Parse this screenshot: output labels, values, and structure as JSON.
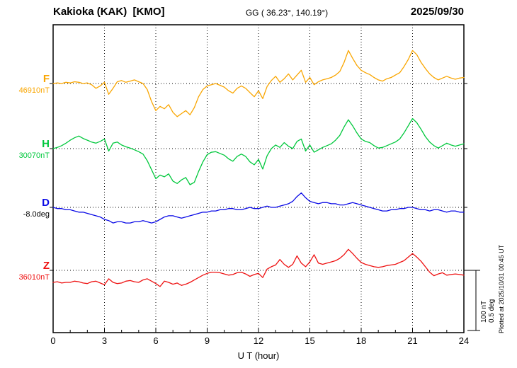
{
  "header": {
    "title": "Kakioka (KAK)  [KMO]",
    "coords": "GG ( 36.23°, 140.19°)",
    "date": "2025/09/30"
  },
  "axis": {
    "x_label": "U T (hour)",
    "x_ticks": [
      "0",
      "3",
      "6",
      "9",
      "12",
      "15",
      "18",
      "21",
      "24"
    ],
    "x_min": 0,
    "x_max": 24
  },
  "scale_bar": {
    "nt_label": "100 nT",
    "deg_label": "0.5 deg"
  },
  "footer_note": "Plotted at 2025/10/31 00:45 UT",
  "chart_data": {
    "type": "line",
    "title": "Kakioka (KAK) [KMO] geomagnetic field variations, 2025/09/30",
    "xlabel": "U T (hour)",
    "x_range_hours": [
      0,
      24
    ],
    "sample_interval_hours": 0.25,
    "grid": "dotted vertical lines every 3 h; dotted horizontal line at each trace baseline",
    "legend_position": "left margin",
    "scale": {
      "nT_per_bar": 100,
      "deg_per_bar": 0.5
    },
    "series": [
      {
        "name": "F",
        "unit": "nT",
        "color": "#f9a602",
        "label_color": "#f9a602",
        "baseline_label": "46910nT",
        "baseline_value": 46910,
        "offsets_from_baseline": [
          0,
          1,
          0,
          2,
          1,
          3,
          2,
          0,
          1,
          -2,
          -8,
          -4,
          2,
          -18,
          -8,
          3,
          5,
          2,
          4,
          6,
          3,
          0,
          -10,
          -30,
          -45,
          -38,
          -42,
          -35,
          -48,
          -55,
          -50,
          -45,
          -52,
          -40,
          -22,
          -10,
          -4,
          -2,
          0,
          -3,
          -6,
          -12,
          -16,
          -8,
          -4,
          -8,
          -15,
          -22,
          -12,
          -25,
          -5,
          5,
          12,
          2,
          8,
          16,
          6,
          14,
          22,
          2,
          10,
          -2,
          3,
          6,
          8,
          10,
          14,
          20,
          35,
          55,
          42,
          30,
          22,
          18,
          15,
          10,
          6,
          4,
          8,
          10,
          14,
          18,
          28,
          40,
          55,
          48,
          35,
          25,
          16,
          10,
          6,
          9,
          12,
          9,
          7,
          9,
          10
        ]
      },
      {
        "name": "H",
        "unit": "nT",
        "color": "#00c83c",
        "label_color": "#00c83c",
        "baseline_label": "30070nT",
        "baseline_value": 30070,
        "offsets_from_baseline": [
          0,
          2,
          5,
          9,
          14,
          18,
          21,
          17,
          14,
          11,
          9,
          12,
          16,
          -4,
          9,
          11,
          6,
          3,
          1,
          -2,
          -5,
          -9,
          -20,
          -35,
          -50,
          -44,
          -47,
          -42,
          -54,
          -58,
          -52,
          -48,
          -60,
          -56,
          -38,
          -22,
          -10,
          -6,
          -5,
          -8,
          -11,
          -17,
          -21,
          -13,
          -9,
          -13,
          -22,
          -27,
          -18,
          -34,
          -12,
          0,
          6,
          2,
          10,
          4,
          0,
          12,
          16,
          -4,
          6,
          -6,
          -2,
          2,
          5,
          8,
          14,
          22,
          36,
          48,
          38,
          26,
          16,
          12,
          10,
          5,
          1,
          2,
          5,
          8,
          11,
          16,
          26,
          38,
          50,
          43,
          32,
          20,
          11,
          5,
          1,
          5,
          9,
          6,
          4,
          6,
          8
        ]
      },
      {
        "name": "D",
        "unit": "deg",
        "color": "#0a0ae6",
        "label_color": "#000000",
        "baseline_label": "-8.0deg",
        "baseline_value": -8.0,
        "offsets_from_baseline": [
          0,
          -0.01,
          -0.01,
          -0.02,
          -0.02,
          -0.03,
          -0.04,
          -0.04,
          -0.05,
          -0.06,
          -0.07,
          -0.08,
          -0.1,
          -0.11,
          -0.13,
          -0.12,
          -0.12,
          -0.13,
          -0.13,
          -0.12,
          -0.12,
          -0.11,
          -0.12,
          -0.13,
          -0.12,
          -0.1,
          -0.08,
          -0.07,
          -0.07,
          -0.08,
          -0.09,
          -0.08,
          -0.07,
          -0.06,
          -0.05,
          -0.04,
          -0.04,
          -0.03,
          -0.03,
          -0.02,
          -0.02,
          -0.01,
          -0.01,
          -0.02,
          -0.02,
          -0.01,
          0,
          -0.01,
          -0.01,
          0,
          0.01,
          0,
          0,
          0.01,
          0.02,
          0.03,
          0.05,
          0.09,
          0.12,
          0.08,
          0.05,
          0.04,
          0.03,
          0.04,
          0.04,
          0.03,
          0.03,
          0.02,
          0.02,
          0.03,
          0.04,
          0.03,
          0.02,
          0.01,
          0,
          -0.01,
          -0.02,
          -0.03,
          -0.03,
          -0.02,
          -0.02,
          -0.01,
          -0.01,
          0,
          0,
          -0.01,
          -0.02,
          -0.02,
          -0.03,
          -0.02,
          -0.02,
          -0.03,
          -0.04,
          -0.03,
          -0.03,
          -0.04,
          -0.04
        ]
      },
      {
        "name": "Z",
        "unit": "nT",
        "color": "#ee1111",
        "label_color": "#ee1111",
        "baseline_label": "36010nT",
        "baseline_value": 36010,
        "offsets_from_baseline": [
          -20,
          -19,
          -21,
          -20,
          -20,
          -18,
          -19,
          -21,
          -22,
          -19,
          -18,
          -21,
          -24,
          -14,
          -20,
          -22,
          -21,
          -18,
          -17,
          -19,
          -20,
          -16,
          -14,
          -18,
          -22,
          -27,
          -18,
          -20,
          -23,
          -21,
          -25,
          -23,
          -20,
          -16,
          -12,
          -8,
          -5,
          -3,
          -3,
          -4,
          -6,
          -8,
          -7,
          -4,
          -3,
          -6,
          -10,
          -7,
          -5,
          -12,
          2,
          6,
          9,
          18,
          10,
          5,
          10,
          24,
          12,
          6,
          14,
          26,
          12,
          10,
          12,
          14,
          16,
          20,
          26,
          35,
          28,
          20,
          13,
          10,
          8,
          6,
          5,
          6,
          8,
          9,
          10,
          13,
          16,
          22,
          28,
          22,
          15,
          6,
          -3,
          -9,
          -6,
          -4,
          -8,
          -7,
          -6,
          -7,
          -8
        ]
      }
    ]
  }
}
